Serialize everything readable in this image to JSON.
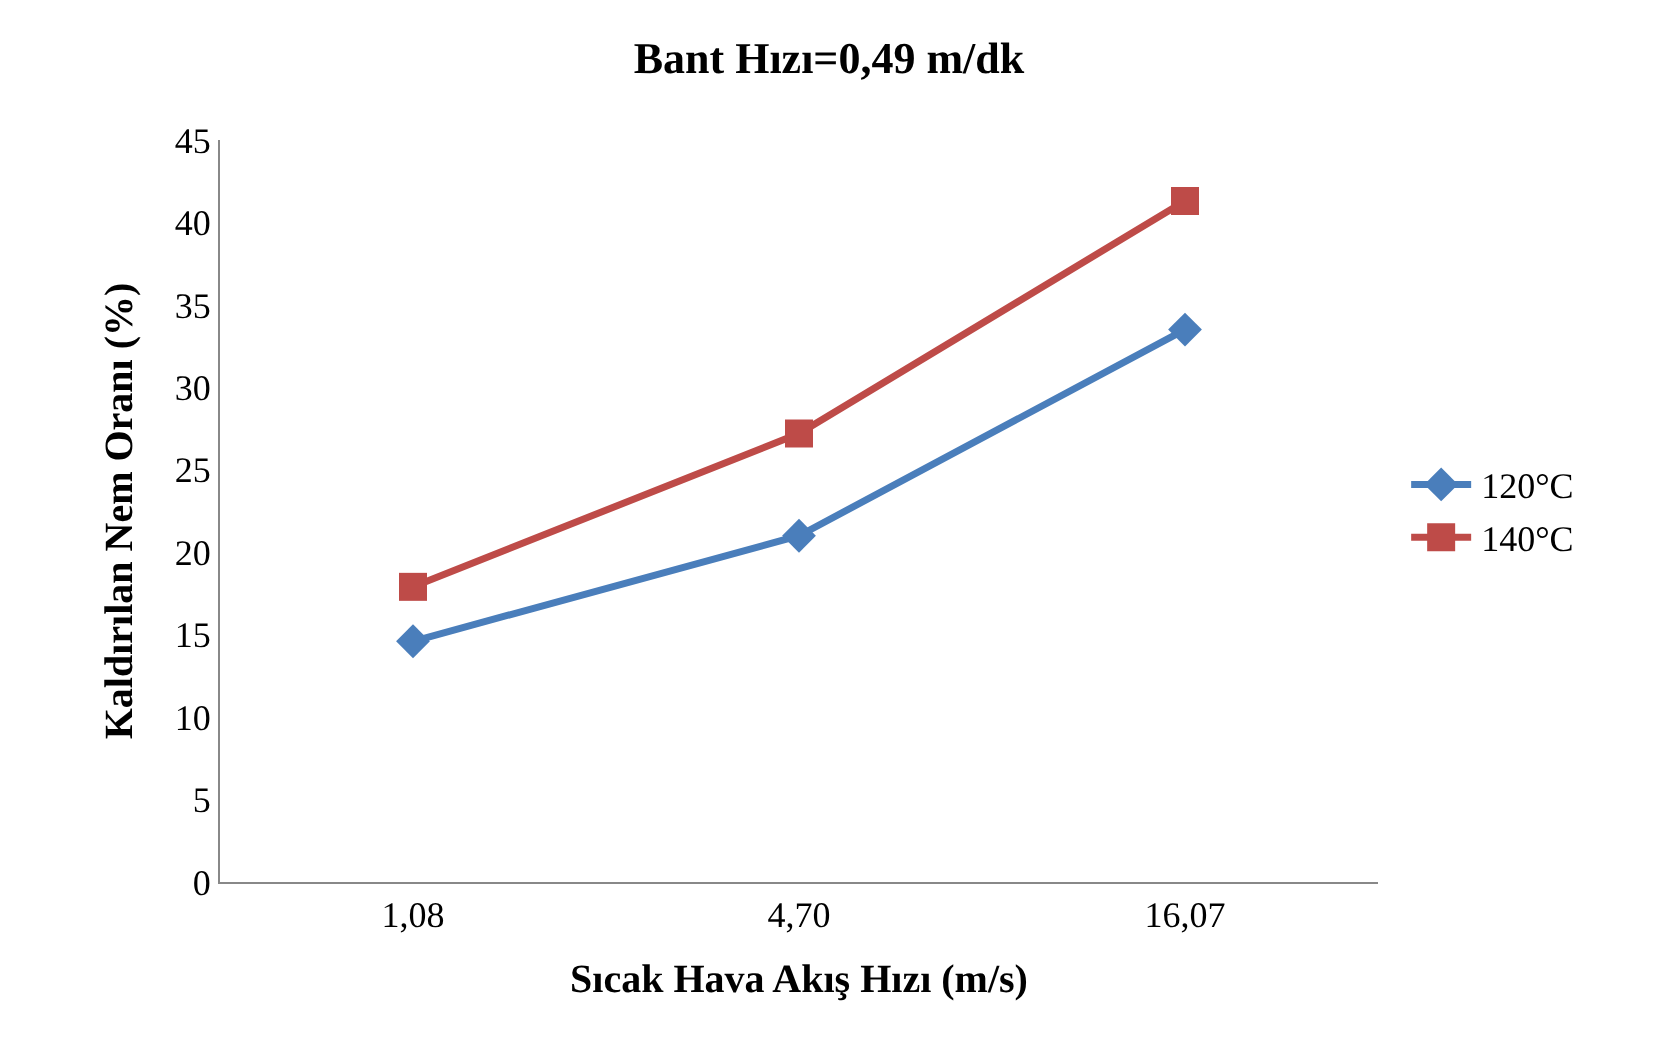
{
  "chart_data": {
    "type": "line",
    "title": "Bant Hızı=0,49 m/dk",
    "xlabel": "Sıcak Hava Akış Hızı (m/s)",
    "ylabel": "Kaldırılan Nem Oranı (%)",
    "categories": [
      "1,08",
      "4,70",
      "16,07"
    ],
    "series": [
      {
        "name": "120°C",
        "color": "#4a7ebb",
        "marker": "diamond",
        "values": [
          14.6,
          21.0,
          33.5
        ]
      },
      {
        "name": "140°C",
        "color": "#be4b48",
        "marker": "square",
        "values": [
          17.9,
          27.2,
          41.3
        ]
      }
    ],
    "ylim": [
      0,
      45
    ],
    "yticks": [
      0,
      5,
      10,
      15,
      20,
      25,
      30,
      35,
      40,
      45
    ],
    "legend": "right",
    "line_style": "solid"
  }
}
